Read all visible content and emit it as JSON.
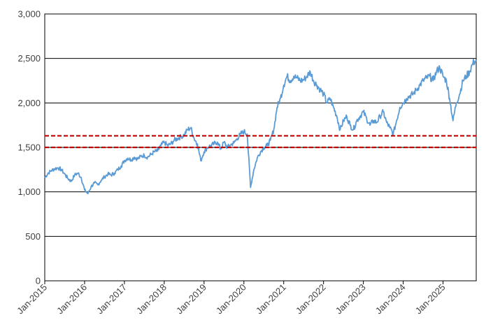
{
  "chart_data": {
    "type": "line",
    "title": "",
    "xlabel": "",
    "ylabel": "",
    "ylim": [
      0,
      3000
    ],
    "xlim": [
      "2015-01",
      "2025-11"
    ],
    "y_ticks": [
      0,
      500,
      1000,
      1500,
      2000,
      2500,
      3000
    ],
    "y_tick_labels": [
      "0",
      "500",
      "1,000",
      "1,500",
      "2,000",
      "2,500",
      "3,000"
    ],
    "x_tick_labels": [
      "Jan-2015",
      "Jan-2016",
      "Jan-2017",
      "Jan-2018",
      "Jan-2019",
      "Jan-2020",
      "Jan-2021",
      "Jan-2022",
      "Jan-2023",
      "Jan-2024",
      "Jan-2025"
    ],
    "grid": "horizontal",
    "legend": "none",
    "series": [
      {
        "color": "#5B9BD5",
        "x": [
          "2015-01",
          "2015-02",
          "2015-03",
          "2015-04",
          "2015-05",
          "2015-06",
          "2015-07",
          "2015-08",
          "2015-09",
          "2015-10",
          "2015-11",
          "2015-12",
          "2016-01",
          "2016-02",
          "2016-03",
          "2016-04",
          "2016-05",
          "2016-06",
          "2016-07",
          "2016-08",
          "2016-09",
          "2016-10",
          "2016-11",
          "2016-12",
          "2017-01",
          "2017-02",
          "2017-03",
          "2017-04",
          "2017-05",
          "2017-06",
          "2017-07",
          "2017-08",
          "2017-09",
          "2017-10",
          "2017-11",
          "2017-12",
          "2018-01",
          "2018-02",
          "2018-03",
          "2018-04",
          "2018-05",
          "2018-06",
          "2018-07",
          "2018-08",
          "2018-09",
          "2018-10",
          "2018-11",
          "2018-12",
          "2019-01",
          "2019-02",
          "2019-03",
          "2019-04",
          "2019-05",
          "2019-06",
          "2019-07",
          "2019-08",
          "2019-09",
          "2019-10",
          "2019-11",
          "2019-12",
          "2020-01",
          "2020-02",
          "2020-03",
          "2020-04",
          "2020-05",
          "2020-06",
          "2020-07",
          "2020-08",
          "2020-09",
          "2020-10",
          "2020-11",
          "2020-12",
          "2021-01",
          "2021-02",
          "2021-03",
          "2021-04",
          "2021-05",
          "2021-06",
          "2021-07",
          "2021-08",
          "2021-09",
          "2021-10",
          "2021-11",
          "2021-12",
          "2022-01",
          "2022-02",
          "2022-03",
          "2022-04",
          "2022-05",
          "2022-06",
          "2022-07",
          "2022-08",
          "2022-09",
          "2022-10",
          "2022-11",
          "2022-12",
          "2023-01",
          "2023-02",
          "2023-03",
          "2023-04",
          "2023-05",
          "2023-06",
          "2023-07",
          "2023-08",
          "2023-09",
          "2023-10",
          "2023-11",
          "2023-12",
          "2024-01",
          "2024-02",
          "2024-03",
          "2024-04",
          "2024-05",
          "2024-06",
          "2024-07",
          "2024-08",
          "2024-09",
          "2024-10",
          "2024-11",
          "2024-12",
          "2025-01",
          "2025-02",
          "2025-03",
          "2025-04",
          "2025-05",
          "2025-06",
          "2025-07",
          "2025-08",
          "2025-09",
          "2025-10",
          "2025-11"
        ],
        "values": [
          1160,
          1210,
          1240,
          1260,
          1270,
          1250,
          1200,
          1150,
          1120,
          1190,
          1210,
          1160,
          1020,
          980,
          1060,
          1100,
          1080,
          1130,
          1170,
          1200,
          1190,
          1210,
          1250,
          1290,
          1350,
          1380,
          1360,
          1390,
          1370,
          1400,
          1410,
          1390,
          1420,
          1450,
          1460,
          1520,
          1560,
          1520,
          1540,
          1580,
          1600,
          1620,
          1640,
          1700,
          1720,
          1600,
          1540,
          1350,
          1450,
          1500,
          1520,
          1540,
          1560,
          1480,
          1560,
          1500,
          1530,
          1550,
          1600,
          1650,
          1680,
          1650,
          1050,
          1250,
          1380,
          1450,
          1500,
          1520,
          1580,
          1700,
          1950,
          2050,
          2200,
          2300,
          2250,
          2300,
          2280,
          2250,
          2260,
          2300,
          2350,
          2250,
          2200,
          2150,
          2100,
          2000,
          2050,
          1950,
          1850,
          1700,
          1800,
          1850,
          1750,
          1700,
          1800,
          1850,
          1900,
          1820,
          1750,
          1800,
          1780,
          1850,
          1900,
          1780,
          1720,
          1650,
          1800,
          1950,
          2000,
          2050,
          2080,
          2100,
          2150,
          2200,
          2250,
          2280,
          2300,
          2250,
          2350,
          2400,
          2300,
          2250,
          2050,
          1800,
          2000,
          2100,
          2250,
          2300,
          2350,
          2450,
          2480
        ]
      },
      {
        "kind": "reference",
        "color": "#C00000",
        "y": 1630
      },
      {
        "kind": "reference",
        "color": "#C00000",
        "y": 1500
      }
    ]
  }
}
